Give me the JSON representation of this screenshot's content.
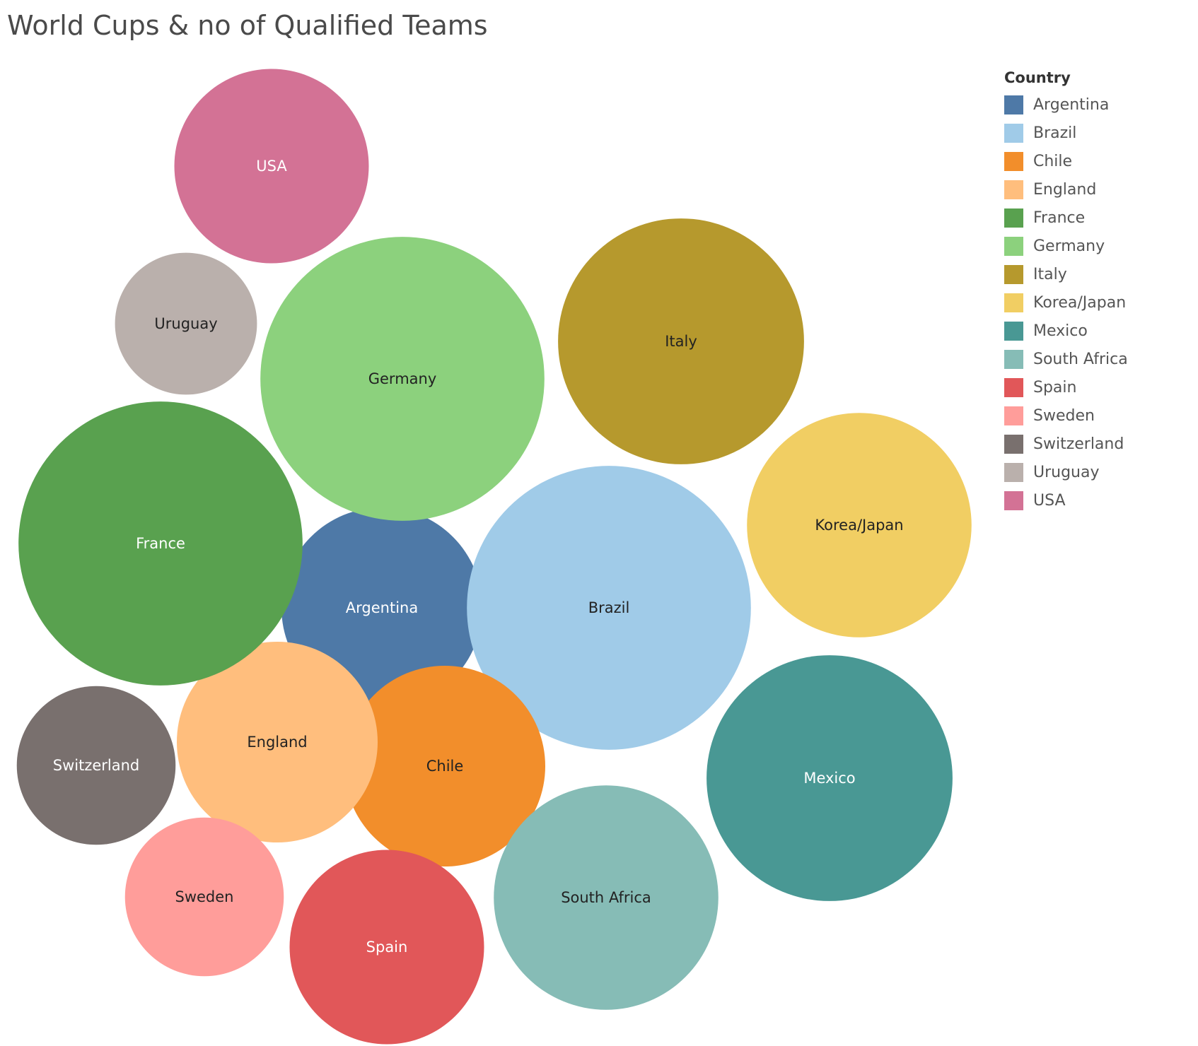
{
  "chart_data": {
    "type": "bubble",
    "title": "World Cups & no of Qualified Teams",
    "legend": {
      "title": "Country",
      "placement": "top-right"
    },
    "items": [
      {
        "name": "Argentina",
        "color": "#4E79A7",
        "label_color": "#ffffff",
        "value": 16
      },
      {
        "name": "Brazil",
        "color": "#A0CBE8",
        "label_color": "#222222",
        "value": 32
      },
      {
        "name": "Chile",
        "color": "#F28E2B",
        "label_color": "#222222",
        "value": 16
      },
      {
        "name": "England",
        "color": "#FFBE7D",
        "label_color": "#222222",
        "value": 16
      },
      {
        "name": "France",
        "color": "#59A14F",
        "label_color": "#ffffff",
        "value": 32
      },
      {
        "name": "Germany",
        "color": "#8CD17D",
        "label_color": "#222222",
        "value": 32
      },
      {
        "name": "Italy",
        "color": "#B6992D",
        "label_color": "#222222",
        "value": 24
      },
      {
        "name": "Korea/Japan",
        "color": "#F1CE63",
        "label_color": "#222222",
        "value": 20
      },
      {
        "name": "Mexico",
        "color": "#499894",
        "label_color": "#ffffff",
        "value": 24
      },
      {
        "name": "South Africa",
        "color": "#86BCB6",
        "label_color": "#222222",
        "value": 20
      },
      {
        "name": "Spain",
        "color": "#E15759",
        "label_color": "#ffffff",
        "value": 15
      },
      {
        "name": "Sweden",
        "color": "#FF9D9A",
        "label_color": "#222222",
        "value": 10
      },
      {
        "name": "Switzerland",
        "color": "#79706E",
        "label_color": "#ffffff",
        "value": 10
      },
      {
        "name": "Uruguay",
        "color": "#BAB0AC",
        "label_color": "#222222",
        "value": 8
      },
      {
        "name": "USA",
        "color": "#D37295",
        "label_color": "#ffffff",
        "value": 15
      }
    ]
  }
}
